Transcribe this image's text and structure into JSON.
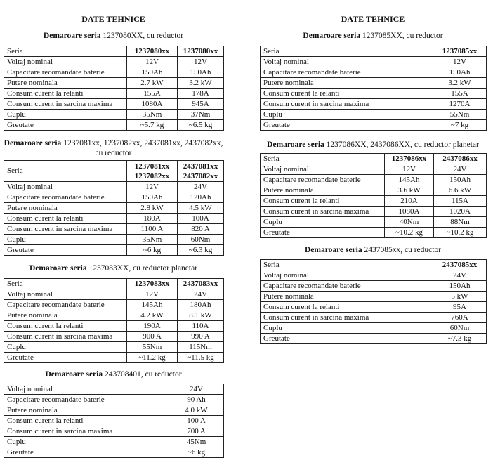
{
  "left": {
    "title": "DATE TEHNICE",
    "tables": [
      {
        "caption_bold": "Demaroare seria",
        "caption_rest": " 1237080XX, cu reductor",
        "header": [
          "Seria",
          "1237080xx",
          "1237080xx"
        ],
        "rows": [
          [
            "Voltaj nominal",
            "12V",
            "12V"
          ],
          [
            "Capacitare recomandate baterie",
            "150Ah",
            "150Ah"
          ],
          [
            "Putere nominala",
            "2.7 kW",
            "3.2 kW"
          ],
          [
            "Consum curent la relanti",
            "155A",
            "178A"
          ],
          [
            "Consum curent in sarcina maxima",
            "1080A",
            "945A"
          ],
          [
            "Cuplu",
            "35Nm",
            "37Nm"
          ],
          [
            "Greutate",
            "~5.7 kg",
            "~6.5 kg"
          ]
        ]
      },
      {
        "caption_bold": "Demaroare seria",
        "caption_rest": " 1237081xx, 1237082xx, 2437081xx, 2437082xx, cu reductor",
        "header": [
          "Seria",
          "1237081xx 1237082xx",
          "2437081xx 2437082xx"
        ],
        "rows": [
          [
            "Voltaj nominal",
            "12V",
            "24V"
          ],
          [
            "Capacitare recomandate baterie",
            "150Ah",
            "120Ah"
          ],
          [
            "Putere nominala",
            "2.8 kW",
            "4.5 kW"
          ],
          [
            "Consum curent la relanti",
            "180A",
            "100A"
          ],
          [
            "Consum curent in sarcina maxima",
            "1100 A",
            "820 A"
          ],
          [
            "Cuplu",
            "35Nm",
            "60Nm"
          ],
          [
            "Greutate",
            "~6 kg",
            "~6.3 kg"
          ]
        ]
      },
      {
        "caption_bold": "Demaroare seria",
        "caption_rest": " 1237083XX, cu reductor planetar",
        "header": [
          "Seria",
          "1237083xx",
          "2437083xx"
        ],
        "rows": [
          [
            "Voltaj nominal",
            "12V",
            "24V"
          ],
          [
            "Capacitare recomandate baterie",
            "145Ah",
            "180Ah"
          ],
          [
            "Putere nominala",
            "4.2 kW",
            "8.1 kW"
          ],
          [
            "Consum curent la relanti",
            "190A",
            "110A"
          ],
          [
            "Consum curent in sarcina maxima",
            "900 A",
            "990 A"
          ],
          [
            "Cuplu",
            "55Nm",
            "115Nm"
          ],
          [
            "Greutate",
            "~11.2 kg",
            "~11.5 kg"
          ]
        ]
      },
      {
        "caption_bold": "Demaroare seria",
        "caption_rest": " 243708401, cu reductor",
        "rows": [
          [
            "Voltaj nominal",
            "24V"
          ],
          [
            "Capacitare recomandate baterie",
            "90 Ah"
          ],
          [
            "Putere nominala",
            "4.0 kW"
          ],
          [
            "Consum curent la relanti",
            "100 A"
          ],
          [
            "Consum curent in sarcina maxima",
            "700 A"
          ],
          [
            "Cuplu",
            "45Nm"
          ],
          [
            "Greutate",
            "~6 kg"
          ]
        ]
      }
    ]
  },
  "right": {
    "title": "DATE TEHNICE",
    "tables": [
      {
        "caption_bold": "Demaroare seria",
        "caption_rest": " 1237085XX, cu reductor",
        "header": [
          "Seria",
          "1237085xx"
        ],
        "rows": [
          [
            "Voltaj nominal",
            "12V"
          ],
          [
            "Capacitare recomandate baterie",
            "150Ah"
          ],
          [
            "Putere nominala",
            "3.2 kW"
          ],
          [
            "Consum curent la relanti",
            "155A"
          ],
          [
            "Consum curent in sarcina maxima",
            "1270A"
          ],
          [
            "Cuplu",
            "55Nm"
          ],
          [
            "Greutate",
            "~7 kg"
          ]
        ]
      },
      {
        "caption_bold": "Demaroare seria",
        "caption_rest": " 1237086XX, 2437086XX, cu reductor planetar",
        "header": [
          "Seria",
          "1237086xx",
          "2437086xx"
        ],
        "rows": [
          [
            "Voltaj nominal",
            "12V",
            "24V"
          ],
          [
            "Capacitare recomandate baterie",
            "145Ah",
            "150Ah"
          ],
          [
            "Putere nominala",
            "3.6 kW",
            "6.6 kW"
          ],
          [
            "Consum curent la relanti",
            "210A",
            "115A"
          ],
          [
            "Consum curent in sarcina maxima",
            "1080A",
            "1020A"
          ],
          [
            "Cuplu",
            "40Nm",
            "88Nm"
          ],
          [
            "Greutate",
            "~10.2 kg",
            "~10.2 kg"
          ]
        ]
      },
      {
        "caption_bold": "Demaroare seria",
        "caption_rest": " 2437085xx, cu reductor",
        "header": [
          "Seria",
          "2437085xx"
        ],
        "rows": [
          [
            "Voltaj nominal",
            "24V"
          ],
          [
            "Capacitare recomandate baterie",
            "150Ah"
          ],
          [
            "Putere nominala",
            "5 kW"
          ],
          [
            "Consum curent la relanti",
            "95A"
          ],
          [
            "Consum curent in sarcina maxima",
            "760A"
          ],
          [
            "Cuplu",
            "60Nm"
          ],
          [
            "Greutate",
            "~7.3 kg"
          ]
        ]
      }
    ]
  }
}
